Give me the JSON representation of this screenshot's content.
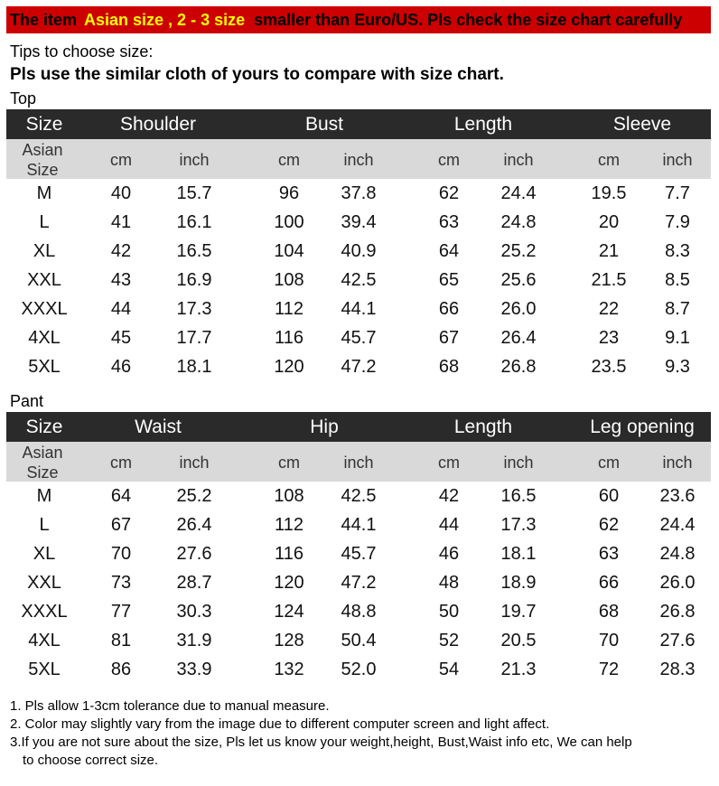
{
  "banner": {
    "part1": "The item",
    "part2": "Asian size , 2 - 3 size",
    "part3": "smaller than Euro/US. Pls check the size chart carefully"
  },
  "tips": {
    "line1": "Tips to choose size:",
    "line2": "Pls use the similar cloth of yours to compare with size chart."
  },
  "top": {
    "label": "Top",
    "headers": [
      "Size",
      "Shoulder",
      "Bust",
      "Length",
      "Sleeve"
    ],
    "sub": {
      "asian": "Asian",
      "size": "Size",
      "cm": "cm",
      "inch": "inch"
    },
    "rows": [
      [
        "M",
        "40",
        "15.7",
        "96",
        "37.8",
        "62",
        "24.4",
        "19.5",
        "7.7"
      ],
      [
        "L",
        "41",
        "16.1",
        "100",
        "39.4",
        "63",
        "24.8",
        "20",
        "7.9"
      ],
      [
        "XL",
        "42",
        "16.5",
        "104",
        "40.9",
        "64",
        "25.2",
        "21",
        "8.3"
      ],
      [
        "XXL",
        "43",
        "16.9",
        "108",
        "42.5",
        "65",
        "25.6",
        "21.5",
        "8.5"
      ],
      [
        "XXXL",
        "44",
        "17.3",
        "112",
        "44.1",
        "66",
        "26.0",
        "22",
        "8.7"
      ],
      [
        "4XL",
        "45",
        "17.7",
        "116",
        "45.7",
        "67",
        "26.4",
        "23",
        "9.1"
      ],
      [
        "5XL",
        "46",
        "18.1",
        "120",
        "47.2",
        "68",
        "26.8",
        "23.5",
        "9.3"
      ]
    ]
  },
  "pant": {
    "label": "Pant",
    "headers": [
      "Size",
      "Waist",
      "Hip",
      "Length",
      "Leg opening"
    ],
    "sub": {
      "asian": "Asian",
      "size": "Size",
      "cm": "cm",
      "inch": "inch"
    },
    "rows": [
      [
        "M",
        "64",
        "25.2",
        "108",
        "42.5",
        "42",
        "16.5",
        "60",
        "23.6"
      ],
      [
        "L",
        "67",
        "26.4",
        "112",
        "44.1",
        "44",
        "17.3",
        "62",
        "24.4"
      ],
      [
        "XL",
        "70",
        "27.6",
        "116",
        "45.7",
        "46",
        "18.1",
        "63",
        "24.8"
      ],
      [
        "XXL",
        "73",
        "28.7",
        "120",
        "47.2",
        "48",
        "18.9",
        "66",
        "26.0"
      ],
      [
        "XXXL",
        "77",
        "30.3",
        "124",
        "48.8",
        "50",
        "19.7",
        "68",
        "26.8"
      ],
      [
        "4XL",
        "81",
        "31.9",
        "128",
        "50.4",
        "52",
        "20.5",
        "70",
        "27.6"
      ],
      [
        "5XL",
        "86",
        "33.9",
        "132",
        "52.0",
        "54",
        "21.3",
        "72",
        "28.3"
      ]
    ]
  },
  "notes": {
    "n1": "1. Pls allow 1-3cm tolerance due to manual measure.",
    "n2": "2. Color may slightly vary from the image due to different computer screen and light affect.",
    "n3": "3.If you are not sure about the size, Pls let us know your weight,height, Bust,Waist info etc, We can help",
    "n3b": "to choose correct size."
  }
}
